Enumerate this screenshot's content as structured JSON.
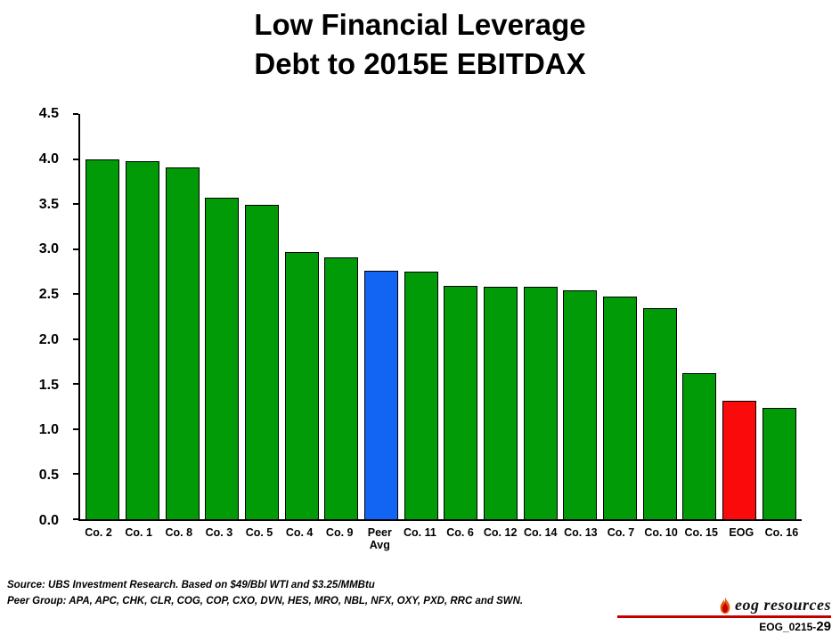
{
  "title": {
    "line1": "Low Financial Leverage",
    "line2": "Debt to 2015E EBITDAX"
  },
  "chart_data": {
    "type": "bar",
    "title": "Low Financial Leverage — Debt to 2015E EBITDAX",
    "categories": [
      "Co. 2",
      "Co. 1",
      "Co. 8",
      "Co. 3",
      "Co. 5",
      "Co. 4",
      "Co. 9",
      "Peer Avg",
      "Co. 11",
      "Co. 6",
      "Co. 12",
      "Co. 14",
      "Co. 13",
      "Co. 7",
      "Co. 10",
      "Co. 15",
      "EOG",
      "Co. 16"
    ],
    "values": [
      4.0,
      3.98,
      3.91,
      3.57,
      3.49,
      2.97,
      2.91,
      2.76,
      2.75,
      2.59,
      2.58,
      2.58,
      2.54,
      2.47,
      2.34,
      1.62,
      1.32,
      1.24
    ],
    "bar_colors": {
      "default": "#009B06",
      "Peer Avg": "#1265F2",
      "EOG": "#FA0A0A"
    },
    "xlabel": "",
    "ylabel": "",
    "ylim": [
      0,
      4.5
    ],
    "ytick_step": 0.5,
    "grid": false,
    "legend": false
  },
  "footer": {
    "source": "Source: UBS Investment Research. Based on $49/Bbl WTI and $3.25/MMBtu",
    "peer_group": "Peer Group: APA, APC, CHK, CLR, COG, COP, CXO, DVN, HES, MRO, NBL, NFX, OXY, PXD, RRC and SWN.",
    "logo_text": "eog resources",
    "slide_code": "EOG_0215-",
    "page_number": "29"
  }
}
